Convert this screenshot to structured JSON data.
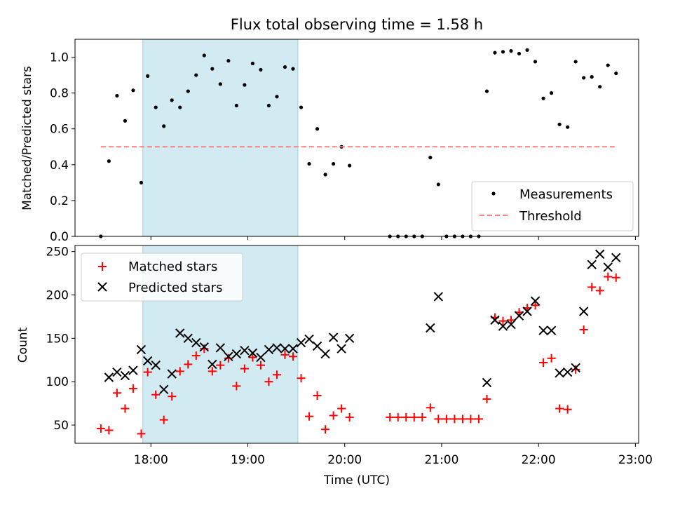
{
  "chart_data": [
    {
      "type": "scatter",
      "title": "Flux total observing time = 1.58 h",
      "xlabel": "",
      "ylabel": "Matched/Predicted stars",
      "xlim": [
        "17:13",
        "23:02"
      ],
      "ylim": [
        0,
        1.1
      ],
      "yticks": [
        "0.0",
        "0.2",
        "0.4",
        "0.6",
        "0.8",
        "1.0"
      ],
      "grid": false,
      "legend_position": "lower-right",
      "shaded_interval": [
        "17:55",
        "19:31"
      ],
      "shade_color": "#add8e6",
      "series": [
        {
          "name": "Measurements",
          "color": "#000000",
          "marker": "dot",
          "points": [
            [
              "17:29",
              0.0
            ],
            [
              "17:34",
              0.42
            ],
            [
              "17:39",
              0.785
            ],
            [
              "17:44",
              0.645
            ],
            [
              "17:49",
              0.815
            ],
            [
              "17:54",
              0.3
            ],
            [
              "17:58",
              0.895
            ],
            [
              "18:03",
              0.72
            ],
            [
              "18:08",
              0.615
            ],
            [
              "18:13",
              0.76
            ],
            [
              "18:18",
              0.72
            ],
            [
              "18:23",
              0.81
            ],
            [
              "18:28",
              0.9
            ],
            [
              "18:33",
              1.01
            ],
            [
              "18:38",
              0.935
            ],
            [
              "18:43",
              0.85
            ],
            [
              "18:48",
              0.98
            ],
            [
              "18:53",
              0.73
            ],
            [
              "18:58",
              0.845
            ],
            [
              "19:03",
              0.965
            ],
            [
              "19:08",
              0.93
            ],
            [
              "19:13",
              0.73
            ],
            [
              "19:18",
              0.78
            ],
            [
              "19:23",
              0.945
            ],
            [
              "19:28",
              0.935
            ],
            [
              "19:33",
              0.72
            ],
            [
              "19:38",
              0.405
            ],
            [
              "19:43",
              0.6
            ],
            [
              "19:48",
              0.345
            ],
            [
              "19:53",
              0.405
            ],
            [
              "19:58",
              0.5
            ],
            [
              "20:03",
              0.395
            ],
            [
              "20:28",
              0.0
            ],
            [
              "20:33",
              0.0
            ],
            [
              "20:38",
              0.0
            ],
            [
              "20:43",
              0.0
            ],
            [
              "20:48",
              0.0
            ],
            [
              "20:53",
              0.44
            ],
            [
              "20:58",
              0.29
            ],
            [
              "21:03",
              0.0
            ],
            [
              "21:08",
              0.0
            ],
            [
              "21:13",
              0.0
            ],
            [
              "21:18",
              0.0
            ],
            [
              "21:23",
              0.0
            ],
            [
              "21:28",
              0.81
            ],
            [
              "21:33",
              1.025
            ],
            [
              "21:38",
              1.03
            ],
            [
              "21:43",
              1.035
            ],
            [
              "21:48",
              1.02
            ],
            [
              "21:53",
              1.04
            ],
            [
              "21:58",
              0.975
            ],
            [
              "22:03",
              0.77
            ],
            [
              "22:08",
              0.8
            ],
            [
              "22:13",
              0.625
            ],
            [
              "22:18",
              0.61
            ],
            [
              "22:23",
              0.975
            ],
            [
              "22:28",
              0.885
            ],
            [
              "22:33",
              0.89
            ],
            [
              "22:38",
              0.835
            ],
            [
              "22:43",
              0.955
            ],
            [
              "22:48",
              0.91
            ]
          ]
        },
        {
          "name": "Threshold",
          "color": "#ff7f7f",
          "style": "dashed",
          "points": [
            [
              "17:29",
              0.5
            ],
            [
              "22:48",
              0.5
            ]
          ]
        }
      ]
    },
    {
      "type": "scatter",
      "title": "",
      "xlabel": "Time (UTC)",
      "ylabel": "Count",
      "xlim": [
        "17:13",
        "23:02"
      ],
      "ylim": [
        29,
        257
      ],
      "xticks": [
        "18:00",
        "19:00",
        "20:00",
        "21:00",
        "22:00",
        "23:00"
      ],
      "yticks": [
        "50",
        "100",
        "150",
        "200",
        "250"
      ],
      "grid": false,
      "legend_position": "top-left",
      "shaded_interval": [
        "17:55",
        "19:31"
      ],
      "shade_color": "#add8e6",
      "series": [
        {
          "name": "Matched stars",
          "color": "#ff0000",
          "marker": "plus",
          "points": [
            [
              "17:29",
              46
            ],
            [
              "17:34",
              44
            ],
            [
              "17:39",
              87
            ],
            [
              "17:44",
              69
            ],
            [
              "17:49",
              92
            ],
            [
              "17:54",
              40
            ],
            [
              "17:58",
              111
            ],
            [
              "18:03",
              85
            ],
            [
              "18:08",
              56
            ],
            [
              "18:13",
              83
            ],
            [
              "18:18",
              112
            ],
            [
              "18:23",
              120
            ],
            [
              "18:28",
              130
            ],
            [
              "18:33",
              138
            ],
            [
              "18:38",
              112
            ],
            [
              "18:43",
              119
            ],
            [
              "18:48",
              127
            ],
            [
              "18:53",
              95
            ],
            [
              "18:58",
              115
            ],
            [
              "19:03",
              128
            ],
            [
              "19:08",
              119
            ],
            [
              "19:13",
              100
            ],
            [
              "19:18",
              108
            ],
            [
              "19:23",
              131
            ],
            [
              "19:28",
              129
            ],
            [
              "19:33",
              104
            ],
            [
              "19:38",
              60
            ],
            [
              "19:43",
              84
            ],
            [
              "19:48",
              45
            ],
            [
              "19:53",
              61
            ],
            [
              "19:58",
              69
            ],
            [
              "20:03",
              59
            ],
            [
              "20:28",
              59
            ],
            [
              "20:33",
              59
            ],
            [
              "20:38",
              59
            ],
            [
              "20:43",
              59
            ],
            [
              "20:48",
              59
            ],
            [
              "20:53",
              70
            ],
            [
              "20:58",
              57
            ],
            [
              "21:03",
              57
            ],
            [
              "21:08",
              57
            ],
            [
              "21:13",
              57
            ],
            [
              "21:18",
              57
            ],
            [
              "21:23",
              57
            ],
            [
              "21:28",
              80
            ],
            [
              "21:33",
              174
            ],
            [
              "21:38",
              170
            ],
            [
              "21:43",
              171
            ],
            [
              "21:48",
              180
            ],
            [
              "21:53",
              185
            ],
            [
              "21:58",
              188
            ],
            [
              "22:03",
              122
            ],
            [
              "22:08",
              127
            ],
            [
              "22:13",
              69
            ],
            [
              "22:18",
              68
            ],
            [
              "22:23",
              114
            ],
            [
              "22:28",
              160
            ],
            [
              "22:33",
              209
            ],
            [
              "22:38",
              205
            ],
            [
              "22:43",
              221
            ],
            [
              "22:48",
              220
            ]
          ]
        },
        {
          "name": "Predicted stars",
          "color": "#000000",
          "marker": "x",
          "points": [
            [
              "17:34",
              105
            ],
            [
              "17:39",
              111
            ],
            [
              "17:44",
              107
            ],
            [
              "17:49",
              113
            ],
            [
              "17:54",
              137
            ],
            [
              "17:58",
              124
            ],
            [
              "18:03",
              119
            ],
            [
              "18:08",
              91
            ],
            [
              "18:13",
              109
            ],
            [
              "18:18",
              156
            ],
            [
              "18:23",
              150
            ],
            [
              "18:28",
              145
            ],
            [
              "18:33",
              140
            ],
            [
              "18:38",
              120
            ],
            [
              "18:43",
              139
            ],
            [
              "18:48",
              129
            ],
            [
              "18:53",
              132
            ],
            [
              "18:58",
              136
            ],
            [
              "19:03",
              133
            ],
            [
              "19:08",
              128
            ],
            [
              "19:13",
              137
            ],
            [
              "19:18",
              139
            ],
            [
              "19:23",
              138
            ],
            [
              "19:28",
              138
            ],
            [
              "19:33",
              145
            ],
            [
              "19:38",
              149
            ],
            [
              "19:43",
              141
            ],
            [
              "19:48",
              132
            ],
            [
              "19:53",
              151
            ],
            [
              "19:58",
              138
            ],
            [
              "20:03",
              150
            ],
            [
              "20:53",
              162
            ],
            [
              "20:58",
              198
            ],
            [
              "21:28",
              99
            ],
            [
              "21:33",
              171
            ],
            [
              "21:38",
              164
            ],
            [
              "21:43",
              166
            ],
            [
              "21:48",
              176
            ],
            [
              "21:53",
              181
            ],
            [
              "21:58",
              193
            ],
            [
              "22:03",
              159
            ],
            [
              "22:08",
              159
            ],
            [
              "22:13",
              110
            ],
            [
              "22:18",
              111
            ],
            [
              "22:23",
              116
            ],
            [
              "22:28",
              181
            ],
            [
              "22:33",
              235
            ],
            [
              "22:38",
              247
            ],
            [
              "22:43",
              232
            ],
            [
              "22:48",
              243
            ]
          ]
        }
      ]
    }
  ]
}
